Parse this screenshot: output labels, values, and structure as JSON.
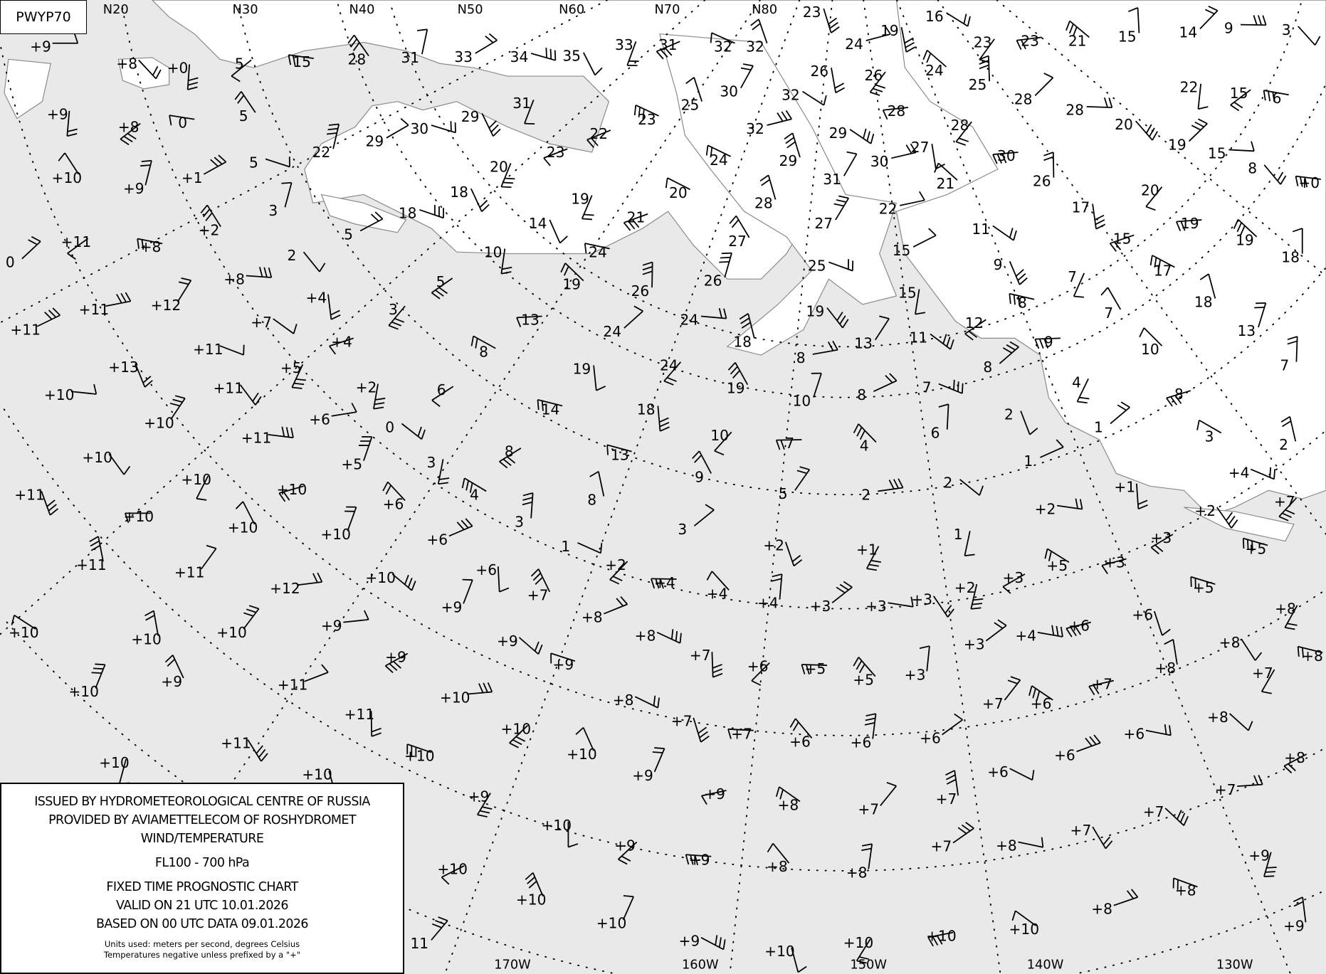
{
  "chart_id": "PWYP70",
  "legend": {
    "issuer": "ISSUED BY HYDROMETEOROLOGICAL CENTRE OF RUSSIA",
    "provider": "PROVIDED BY AVIAMETTELECOM OF ROSHYDROMET",
    "product": "WIND/TEMPERATURE",
    "level": "FL100 - 700 hPa",
    "chart_type": "FIXED TIME PROGNOSTIC CHART",
    "valid": "VALID ON 21 UTC 10.01.2026",
    "based": "BASED ON 00 UTC DATA 09.01.2026",
    "units": "Units used: meters per second, degrees Celsius",
    "note": "Temperatures negative unless prefixed by a \"+\""
  },
  "latitude_labels": [
    "N20",
    "N30",
    "N40",
    "N50",
    "N60",
    "N70",
    "N80"
  ],
  "longitude_labels": [
    "170W",
    "160W",
    "150W",
    "140W",
    "130W"
  ],
  "colors": {
    "sea": "#e9e9e9",
    "land": "#ffffff",
    "coast": "#8a8a8a",
    "grid": "#000000"
  },
  "temperatures": [
    "+9",
    "+8",
    "+0",
    "5",
    "15",
    "28",
    "31",
    "33",
    "34",
    "35",
    "33",
    "31",
    "32",
    "32",
    "23",
    "24",
    "16",
    "19",
    "23",
    "23",
    "21",
    "15",
    "14",
    "9",
    "3",
    "+9",
    "+8",
    "0",
    "5",
    "22",
    "29",
    "30",
    "29",
    "31",
    "22",
    "23",
    "25",
    "30",
    "32",
    "32",
    "26",
    "26",
    "28",
    "24",
    "25",
    "28",
    "28",
    "20",
    "22",
    "15",
    "6",
    "+10",
    "+9",
    "+1",
    "5",
    "18",
    "20",
    "23",
    "24",
    "29",
    "31",
    "30",
    "29",
    "27",
    "28",
    "30",
    "21",
    "26",
    "19",
    "15",
    "8",
    "+0",
    "+11",
    "+8",
    "+2",
    "3",
    "5",
    "18",
    "14",
    "19",
    "21",
    "20",
    "28",
    "27",
    "22",
    "11",
    "17",
    "20",
    "19",
    "19",
    "18",
    "0",
    "+8",
    "2",
    "10",
    "5",
    "24",
    "27",
    "26",
    "15",
    "25",
    "9",
    "7",
    "15",
    "17",
    "18",
    "+12",
    "+11",
    "+7",
    "+4",
    "3",
    "13",
    "19",
    "26",
    "24",
    "24",
    "19",
    "15",
    "12",
    "8",
    "7",
    "13",
    "+11",
    "+11",
    "+13",
    "+5",
    "+4",
    "8",
    "18",
    "13",
    "8",
    "11",
    "19",
    "24",
    "9",
    "10",
    "7",
    "8",
    "+10",
    "+11",
    "+2",
    "6",
    "14",
    "19",
    "10",
    "8",
    "7",
    "2",
    "4",
    "8",
    "3",
    "2",
    "+10",
    "+6",
    "0",
    "18",
    "10",
    "7",
    "4",
    "6",
    "1",
    "+11",
    "+10",
    "3",
    "8",
    "13",
    "9",
    "+5",
    "1",
    "+4",
    "+11",
    "+10",
    "+10",
    "4",
    "8",
    "5",
    "2",
    "2",
    "+1",
    "+7",
    "+10",
    "+6",
    "3",
    "3",
    "+2",
    "+2",
    "1",
    "+3",
    "+5",
    "+10",
    "+10",
    "+6",
    "1",
    "+2",
    "+1",
    "+3",
    "+5",
    "+11",
    "+11",
    "+12",
    "+10",
    "+6",
    "+2",
    "+4",
    "+4",
    "+4",
    "+3",
    "+3",
    "+3",
    "+2",
    "+3",
    "+5",
    "+7",
    "+9",
    "+8",
    "+8",
    "+6",
    "+8",
    "+6",
    "+10",
    "+10",
    "+10",
    "+9",
    "+9",
    "+7",
    "+6",
    "+5",
    "+5",
    "+3",
    "+3",
    "+4",
    "+8",
    "+8",
    "+9",
    "+9",
    "+9",
    "+10",
    "+11",
    "+8",
    "+7",
    "+7",
    "+7",
    "+6",
    "+8",
    "+7",
    "+10",
    "+8",
    "+11",
    "+10",
    "+7",
    "+6",
    "+6",
    "+6",
    "+6",
    "+11",
    "+10",
    "+8",
    "+10",
    "+10",
    "+9",
    "+6",
    "+6",
    "+10",
    "+9",
    "+9",
    "+8",
    "+7",
    "+7",
    "+7",
    "+7",
    "+10",
    "+9",
    "+9",
    "+8",
    "+8",
    "+7",
    "+8",
    "+7",
    "+9",
    "+10",
    "+8",
    "+10",
    "+10",
    "+8",
    "+9",
    "+10",
    "+10",
    "+10",
    "+10",
    "+9",
    "11"
  ]
}
